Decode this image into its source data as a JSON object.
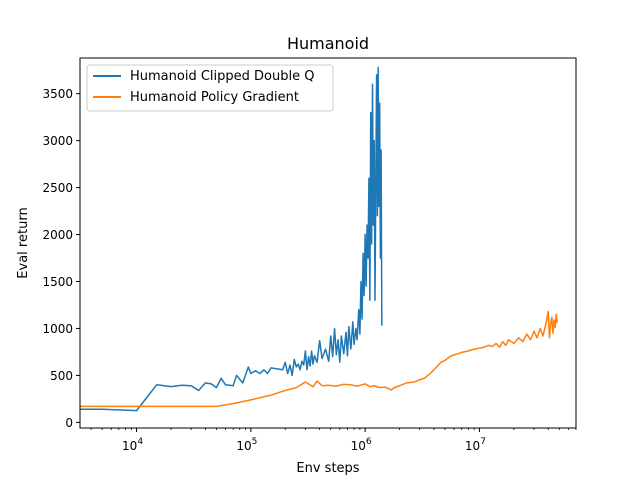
{
  "chart_data": {
    "type": "line",
    "title": "Humanoid",
    "xlabel": "Env steps",
    "ylabel": "Eval return",
    "xscale": "log",
    "xlim": [
      3200,
      70000000
    ],
    "ylim": [
      -60,
      3880
    ],
    "grid": false,
    "legend": "top-left",
    "x_major_ticks": [
      {
        "value": 10000,
        "base": "10",
        "exp": "4"
      },
      {
        "value": 100000,
        "base": "10",
        "exp": "5"
      },
      {
        "value": 1000000,
        "base": "10",
        "exp": "6"
      },
      {
        "value": 10000000,
        "base": "10",
        "exp": "7"
      }
    ],
    "y_ticks": [
      0,
      500,
      1000,
      1500,
      2000,
      2500,
      3000,
      3500
    ],
    "series": [
      {
        "name": "Humanoid Clipped Double Q",
        "color": "#1f77b4",
        "points": [
          [
            3200,
            140
          ],
          [
            5000,
            140
          ],
          [
            10000,
            125
          ],
          [
            15000,
            400
          ],
          [
            20000,
            380
          ],
          [
            25000,
            395
          ],
          [
            30000,
            390
          ],
          [
            35000,
            340
          ],
          [
            40000,
            420
          ],
          [
            45000,
            410
          ],
          [
            50000,
            370
          ],
          [
            55000,
            470
          ],
          [
            60000,
            400
          ],
          [
            70000,
            390
          ],
          [
            75000,
            500
          ],
          [
            85000,
            420
          ],
          [
            95000,
            590
          ],
          [
            100000,
            520
          ],
          [
            110000,
            550
          ],
          [
            120000,
            520
          ],
          [
            130000,
            560
          ],
          [
            140000,
            520
          ],
          [
            150000,
            580
          ],
          [
            170000,
            570
          ],
          [
            190000,
            560
          ],
          [
            200000,
            640
          ],
          [
            210000,
            520
          ],
          [
            220000,
            610
          ],
          [
            230000,
            500
          ],
          [
            240000,
            670
          ],
          [
            250000,
            590
          ],
          [
            260000,
            620
          ],
          [
            270000,
            560
          ],
          [
            280000,
            650
          ],
          [
            290000,
            610
          ],
          [
            300000,
            760
          ],
          [
            310000,
            560
          ],
          [
            320000,
            700
          ],
          [
            330000,
            600
          ],
          [
            340000,
            760
          ],
          [
            350000,
            620
          ],
          [
            360000,
            710
          ],
          [
            380000,
            640
          ],
          [
            400000,
            870
          ],
          [
            420000,
            680
          ],
          [
            450000,
            780
          ],
          [
            480000,
            650
          ],
          [
            500000,
            920
          ],
          [
            520000,
            700
          ],
          [
            540000,
            1000
          ],
          [
            560000,
            720
          ],
          [
            580000,
            880
          ],
          [
            600000,
            640
          ],
          [
            620000,
            920
          ],
          [
            650000,
            730
          ],
          [
            680000,
            960
          ],
          [
            700000,
            710
          ],
          [
            720000,
            1020
          ],
          [
            750000,
            780
          ],
          [
            780000,
            1070
          ],
          [
            800000,
            830
          ],
          [
            830000,
            1000
          ],
          [
            850000,
            880
          ],
          [
            880000,
            1200
          ],
          [
            900000,
            940
          ],
          [
            920000,
            1500
          ],
          [
            940000,
            1100
          ],
          [
            960000,
            1800
          ],
          [
            980000,
            1350
          ],
          [
            1000000,
            2000
          ],
          [
            1020000,
            1450
          ],
          [
            1040000,
            2100
          ],
          [
            1060000,
            1750
          ],
          [
            1080000,
            2600
          ],
          [
            1100000,
            1300
          ],
          [
            1120000,
            3300
          ],
          [
            1140000,
            1900
          ],
          [
            1160000,
            3600
          ],
          [
            1180000,
            2100
          ],
          [
            1200000,
            3000
          ],
          [
            1220000,
            1300
          ],
          [
            1240000,
            2550
          ],
          [
            1260000,
            3700
          ],
          [
            1280000,
            2200
          ],
          [
            1300000,
            3780
          ],
          [
            1320000,
            2300
          ],
          [
            1340000,
            3400
          ],
          [
            1360000,
            1750
          ],
          [
            1380000,
            2900
          ],
          [
            1400000,
            1030
          ]
        ]
      },
      {
        "name": "Humanoid Policy Gradient",
        "color": "#ff7f0e",
        "points": [
          [
            3200,
            170
          ],
          [
            10000,
            170
          ],
          [
            20000,
            170
          ],
          [
            50000,
            170
          ],
          [
            70000,
            200
          ],
          [
            100000,
            240
          ],
          [
            150000,
            290
          ],
          [
            200000,
            340
          ],
          [
            250000,
            370
          ],
          [
            300000,
            430
          ],
          [
            320000,
            410
          ],
          [
            350000,
            380
          ],
          [
            380000,
            440
          ],
          [
            420000,
            390
          ],
          [
            480000,
            395
          ],
          [
            550000,
            385
          ],
          [
            650000,
            405
          ],
          [
            750000,
            400
          ],
          [
            850000,
            385
          ],
          [
            1000000,
            410
          ],
          [
            1100000,
            380
          ],
          [
            1200000,
            390
          ],
          [
            1350000,
            370
          ],
          [
            1500000,
            375
          ],
          [
            1600000,
            360
          ],
          [
            1700000,
            345
          ],
          [
            1800000,
            370
          ],
          [
            2000000,
            390
          ],
          [
            2300000,
            420
          ],
          [
            2700000,
            430
          ],
          [
            3000000,
            455
          ],
          [
            3300000,
            470
          ],
          [
            3700000,
            520
          ],
          [
            4000000,
            560
          ],
          [
            4300000,
            600
          ],
          [
            4600000,
            640
          ],
          [
            5000000,
            660
          ],
          [
            5500000,
            700
          ],
          [
            6000000,
            720
          ],
          [
            6500000,
            730
          ],
          [
            7000000,
            745
          ],
          [
            8000000,
            760
          ],
          [
            9000000,
            780
          ],
          [
            10000000,
            790
          ],
          [
            11000000,
            800
          ],
          [
            12000000,
            820
          ],
          [
            13000000,
            810
          ],
          [
            14000000,
            840
          ],
          [
            15000000,
            800
          ],
          [
            16000000,
            860
          ],
          [
            17000000,
            820
          ],
          [
            18000000,
            880
          ],
          [
            20000000,
            840
          ],
          [
            22000000,
            900
          ],
          [
            24000000,
            860
          ],
          [
            26000000,
            940
          ],
          [
            28000000,
            880
          ],
          [
            30000000,
            970
          ],
          [
            32000000,
            900
          ],
          [
            34000000,
            1000
          ],
          [
            36000000,
            920
          ],
          [
            38000000,
            1040
          ],
          [
            40000000,
            1180
          ],
          [
            41000000,
            900
          ],
          [
            42000000,
            1050
          ],
          [
            43000000,
            1120
          ],
          [
            44000000,
            950
          ],
          [
            45000000,
            1090
          ],
          [
            46000000,
            1010
          ],
          [
            47000000,
            1150
          ],
          [
            48000000,
            1060
          ]
        ]
      }
    ]
  }
}
